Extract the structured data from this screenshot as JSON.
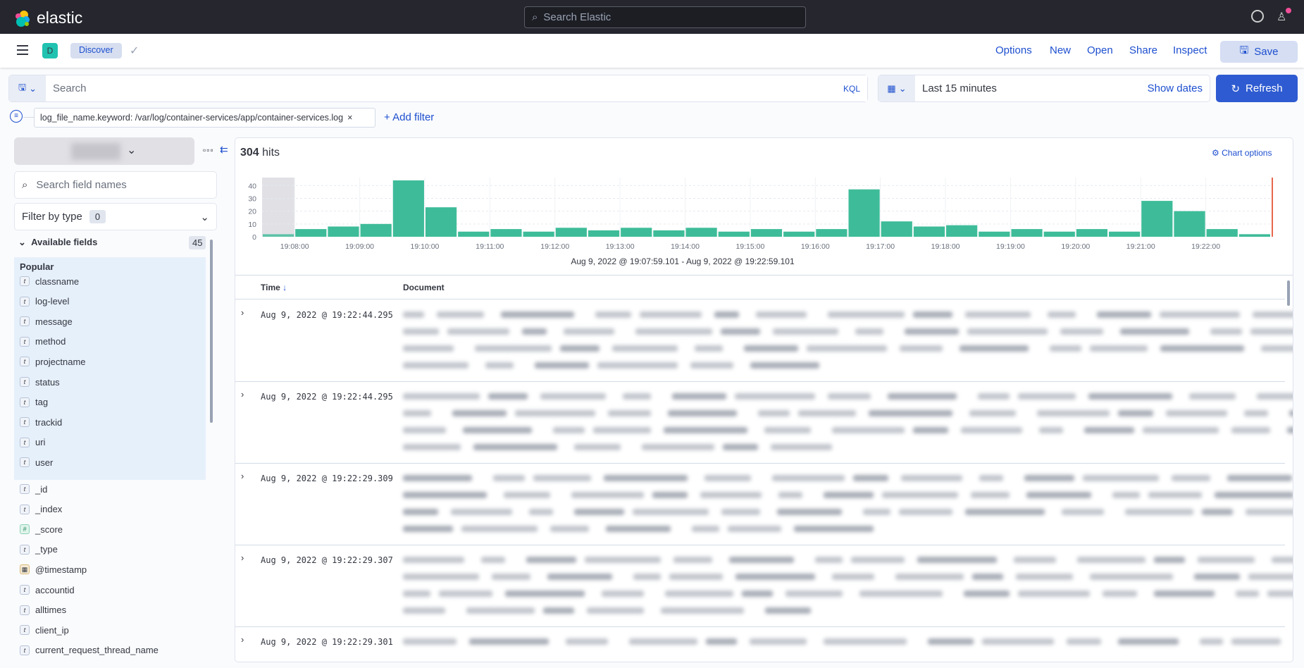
{
  "topbar": {
    "brand": "elastic",
    "search_placeholder": "Search Elastic"
  },
  "nav": {
    "space_initial": "D",
    "app": "Discover",
    "links": [
      "Options",
      "New",
      "Open",
      "Share",
      "Inspect"
    ],
    "save": "Save"
  },
  "query": {
    "placeholder": "Search",
    "language": "KQL",
    "time": "Last 15 minutes",
    "show_dates": "Show dates",
    "refresh": "Refresh"
  },
  "filter": {
    "pill": "log_file_name.keyword: /var/log/container-services/app/container-services.log",
    "add": "+ Add filter"
  },
  "sidebar": {
    "search_placeholder": "Search field names",
    "filter_type": "Filter by type",
    "filter_count": "0",
    "available": "Available fields",
    "available_count": "45",
    "popular_label": "Popular",
    "popular": [
      {
        "t": "t",
        "n": "classname"
      },
      {
        "t": "t",
        "n": "log-level"
      },
      {
        "t": "t",
        "n": "message"
      },
      {
        "t": "t",
        "n": "method"
      },
      {
        "t": "t",
        "n": "projectname"
      },
      {
        "t": "t",
        "n": "status"
      },
      {
        "t": "t",
        "n": "tag"
      },
      {
        "t": "t",
        "n": "trackid"
      },
      {
        "t": "t",
        "n": "uri"
      },
      {
        "t": "t",
        "n": "user"
      }
    ],
    "fields": [
      {
        "t": "t",
        "n": "_id"
      },
      {
        "t": "t",
        "n": "_index"
      },
      {
        "t": "#",
        "n": "_score"
      },
      {
        "t": "t",
        "n": "_type"
      },
      {
        "t": "cal",
        "n": "@timestamp"
      },
      {
        "t": "t",
        "n": "accountid"
      },
      {
        "t": "t",
        "n": "alltimes"
      },
      {
        "t": "t",
        "n": "client_ip"
      },
      {
        "t": "t",
        "n": "current_request_thread_name"
      }
    ]
  },
  "main": {
    "hits": "304",
    "hits_label": "hits",
    "chart_options": "Chart options",
    "time_col": "Time",
    "doc_col": "Document",
    "rows": [
      "Aug 9, 2022 @ 19:22:44.295",
      "Aug 9, 2022 @ 19:22:44.295",
      "Aug 9, 2022 @ 19:22:29.309",
      "Aug 9, 2022 @ 19:22:29.307",
      "Aug 9, 2022 @ 19:22:29.301"
    ]
  },
  "chart_data": {
    "type": "bar",
    "range_label": "Aug 9, 2022 @ 19:07:59.101 - Aug 9, 2022 @ 19:22:59.101",
    "interval": "30s",
    "ylim": [
      0,
      44
    ],
    "yticks": [
      "0",
      "10",
      "20",
      "30",
      "40"
    ],
    "xticks": [
      "19:08:00",
      "19:09:00",
      "19:10:00",
      "19:11:00",
      "19:12:00",
      "19:13:00",
      "19:14:00",
      "19:15:00",
      "19:16:00",
      "19:17:00",
      "19:18:00",
      "19:19:00",
      "19:20:00",
      "19:21:00",
      "19:22:00"
    ],
    "values": [
      2,
      6,
      8,
      10,
      44,
      23,
      4,
      6,
      4,
      7,
      5,
      7,
      5,
      7,
      4,
      6,
      4,
      6,
      37,
      12,
      8,
      9,
      4,
      6,
      4,
      6,
      4,
      28,
      20,
      6,
      2
    ],
    "color": "#3ebc99",
    "now_marker_color": "#e7664c"
  }
}
